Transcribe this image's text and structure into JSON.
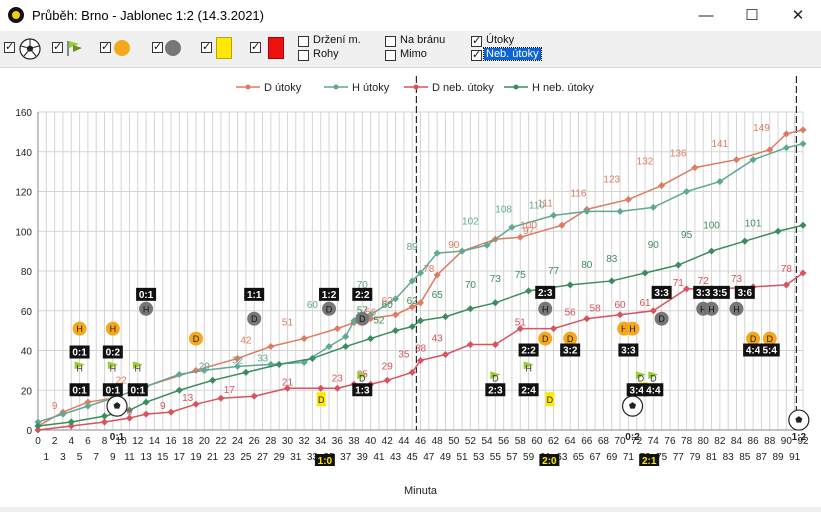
{
  "window": {
    "title": "Průběh: Brno - Jablonec 1:2 (14.3.2021)",
    "minimize": "—",
    "maximize": "☐",
    "close": "✕"
  },
  "toolbar": {
    "options": [
      {
        "label": "Držení m.",
        "checked": false
      },
      {
        "label": "Rohy",
        "checked": false
      },
      {
        "label": "Na bránu",
        "checked": false
      },
      {
        "label": "Mimo",
        "checked": false
      },
      {
        "label": "Útoky",
        "checked": true
      },
      {
        "label": "Neb. útoky",
        "checked": true,
        "selected": true
      }
    ],
    "event_toggles": [
      {
        "icon": "ball-icon",
        "checked": true
      },
      {
        "icon": "flag-icon",
        "checked": true
      },
      {
        "icon": "orange-dot-icon",
        "checked": true
      },
      {
        "icon": "gray-dot-icon",
        "checked": true
      },
      {
        "icon": "yellow-card-icon",
        "checked": true
      },
      {
        "icon": "red-card-icon",
        "checked": true
      }
    ]
  },
  "legend": [
    "D útoky",
    "H útoky",
    "D neb. útoky",
    "H neb. útoky"
  ],
  "colors": {
    "d_utoky": "#e07a62",
    "h_utoky": "#5fa893",
    "d_neb": "#d9535c",
    "h_neb": "#3d8c60",
    "yellow_card": "#ffe800",
    "orange_event": "#f5a81c",
    "gray_event": "#777777"
  },
  "chart_data": {
    "type": "line",
    "xlabel": "Minuta",
    "ylabel": "",
    "xlim": [
      0,
      92
    ],
    "ylim": [
      0,
      160
    ],
    "yticks": [
      0,
      20,
      40,
      60,
      80,
      100,
      120,
      140,
      160
    ],
    "series": [
      {
        "name": "D útoky",
        "x": [
          0,
          3,
          6,
          9,
          13,
          19,
          24,
          28,
          32,
          36,
          38,
          40,
          43,
          45,
          46,
          48,
          51,
          55,
          58,
          63,
          66,
          71,
          75,
          79,
          84,
          88,
          90,
          92
        ],
        "values": [
          2,
          9,
          14,
          16,
          22,
          30,
          36,
          42,
          46,
          51,
          54,
          56,
          58,
          62,
          64,
          78,
          90,
          96,
          97,
          103,
          111,
          116,
          123,
          132,
          136,
          141,
          149,
          151
        ]
      },
      {
        "name": "H útoky",
        "x": [
          0,
          3,
          6,
          9,
          13,
          17,
          20,
          24,
          28,
          32,
          35,
          37,
          38,
          40,
          43,
          45,
          46,
          48,
          51,
          54,
          57,
          62,
          66,
          70,
          74,
          78,
          82,
          86,
          90,
          92
        ],
        "values": [
          4,
          8,
          12,
          16,
          22,
          28,
          30,
          32,
          33,
          34,
          42,
          47,
          55,
          58,
          66,
          75,
          79,
          89,
          90,
          93,
          102,
          108,
          110,
          110,
          112,
          120,
          125,
          136,
          142,
          144
        ]
      },
      {
        "name": "D neb. útoky",
        "x": [
          0,
          4,
          8,
          11,
          13,
          16,
          19,
          22,
          26,
          30,
          34,
          36,
          38,
          40,
          42,
          45,
          46,
          49,
          52,
          55,
          58,
          62,
          66,
          70,
          74,
          78,
          82,
          86,
          90,
          92
        ],
        "values": [
          0,
          2,
          4,
          6,
          8,
          9,
          13,
          16,
          17,
          21,
          21,
          21,
          23,
          23,
          25,
          29,
          35,
          38,
          43,
          43,
          51,
          51,
          56,
          58,
          60,
          71,
          71,
          72,
          73,
          79
        ]
      },
      {
        "name": "H neb. útoky",
        "x": [
          0,
          4,
          8,
          11,
          13,
          17,
          21,
          25,
          29,
          33,
          37,
          40,
          43,
          45,
          46,
          49,
          52,
          55,
          59,
          64,
          69,
          73,
          77,
          81,
          85,
          89,
          92
        ],
        "values": [
          2,
          4,
          7,
          10,
          14,
          20,
          25,
          29,
          33,
          36,
          42,
          46,
          50,
          52,
          55,
          57,
          61,
          64,
          70,
          73,
          75,
          79,
          83,
          90,
          95,
          100,
          103
        ]
      }
    ],
    "data_labels": [
      {
        "text": "149",
        "x": 87,
        "y": 149,
        "series": 0
      },
      {
        "text": "141",
        "x": 82,
        "y": 141,
        "series": 0
      },
      {
        "text": "136",
        "x": 77,
        "y": 136,
        "series": 0
      },
      {
        "text": "132",
        "x": 73,
        "y": 132,
        "series": 0
      },
      {
        "text": "123",
        "x": 69,
        "y": 123,
        "series": 0
      },
      {
        "text": "116",
        "x": 65,
        "y": 116,
        "series": 0
      },
      {
        "text": "111",
        "x": 61,
        "y": 111,
        "series": 0
      },
      {
        "text": "108",
        "x": 56,
        "y": 108,
        "series": 1
      },
      {
        "text": "110",
        "x": 60,
        "y": 110,
        "series": 1
      },
      {
        "text": "102",
        "x": 52,
        "y": 102,
        "series": 1
      },
      {
        "text": "100",
        "x": 59,
        "y": 100,
        "series": 0
      },
      {
        "text": "97",
        "x": 59,
        "y": 97,
        "series": 0
      },
      {
        "text": "90",
        "x": 50,
        "y": 90,
        "series": 0
      },
      {
        "text": "89",
        "x": 45,
        "y": 89,
        "series": 1
      },
      {
        "text": "78",
        "x": 47,
        "y": 78,
        "series": 0
      },
      {
        "text": "70",
        "x": 39,
        "y": 70,
        "series": 1
      },
      {
        "text": "62",
        "x": 42,
        "y": 62,
        "series": 0
      },
      {
        "text": "60",
        "x": 33,
        "y": 60,
        "series": 1
      },
      {
        "text": "56",
        "x": 40,
        "y": 56,
        "series": 0
      },
      {
        "text": "51",
        "x": 30,
        "y": 51,
        "series": 0
      },
      {
        "text": "42",
        "x": 25,
        "y": 42,
        "series": 0
      },
      {
        "text": "33",
        "x": 27,
        "y": 33,
        "series": 1
      },
      {
        "text": "32",
        "x": 24,
        "y": 32,
        "series": 1
      },
      {
        "text": "29",
        "x": 20,
        "y": 29,
        "series": 1
      },
      {
        "text": "22",
        "x": 10,
        "y": 22,
        "series": 0
      },
      {
        "text": "9",
        "x": 2,
        "y": 9,
        "series": 0
      },
      {
        "text": "101",
        "x": 86,
        "y": 101,
        "series": 3
      },
      {
        "text": "100",
        "x": 81,
        "y": 100,
        "series": 3
      },
      {
        "text": "95",
        "x": 78,
        "y": 95,
        "series": 3
      },
      {
        "text": "90",
        "x": 74,
        "y": 90,
        "series": 3
      },
      {
        "text": "83",
        "x": 69,
        "y": 83,
        "series": 3
      },
      {
        "text": "80",
        "x": 66,
        "y": 80,
        "series": 3
      },
      {
        "text": "77",
        "x": 62,
        "y": 77,
        "series": 3
      },
      {
        "text": "75",
        "x": 58,
        "y": 75,
        "series": 3
      },
      {
        "text": "73",
        "x": 55,
        "y": 73,
        "series": 3
      },
      {
        "text": "70",
        "x": 52,
        "y": 70,
        "series": 3
      },
      {
        "text": "65",
        "x": 48,
        "y": 65,
        "series": 3
      },
      {
        "text": "62",
        "x": 45,
        "y": 62,
        "series": 3
      },
      {
        "text": "60",
        "x": 42,
        "y": 60,
        "series": 3
      },
      {
        "text": "57",
        "x": 39,
        "y": 57,
        "series": 3
      },
      {
        "text": "52",
        "x": 41,
        "y": 52,
        "series": 3
      },
      {
        "text": "43",
        "x": 48,
        "y": 43,
        "series": 2
      },
      {
        "text": "78",
        "x": 90,
        "y": 78,
        "series": 2
      },
      {
        "text": "73",
        "x": 84,
        "y": 73,
        "series": 2
      },
      {
        "text": "72",
        "x": 80,
        "y": 72,
        "series": 2
      },
      {
        "text": "71",
        "x": 77,
        "y": 71,
        "series": 2
      },
      {
        "text": "61",
        "x": 73,
        "y": 61,
        "series": 2
      },
      {
        "text": "60",
        "x": 70,
        "y": 60,
        "series": 2
      },
      {
        "text": "58",
        "x": 67,
        "y": 58,
        "series": 2
      },
      {
        "text": "56",
        "x": 64,
        "y": 56,
        "series": 2
      },
      {
        "text": "51",
        "x": 58,
        "y": 51,
        "series": 2
      },
      {
        "text": "38",
        "x": 46,
        "y": 38,
        "series": 2
      },
      {
        "text": "35",
        "x": 44,
        "y": 35,
        "series": 2
      },
      {
        "text": "29",
        "x": 42,
        "y": 29,
        "series": 2
      },
      {
        "text": "25",
        "x": 39,
        "y": 25,
        "series": 2
      },
      {
        "text": "23",
        "x": 36,
        "y": 23,
        "series": 2
      },
      {
        "text": "21",
        "x": 30,
        "y": 21,
        "series": 2
      },
      {
        "text": "17",
        "x": 23,
        "y": 17,
        "series": 2
      },
      {
        "text": "13",
        "x": 18,
        "y": 13,
        "series": 2
      },
      {
        "text": "9",
        "x": 15,
        "y": 9,
        "series": 2
      },
      {
        "text": "6",
        "x": 11,
        "y": 6,
        "series": 2
      }
    ],
    "score_markers": [
      {
        "text": "0:1",
        "x": 13,
        "y": 68
      },
      {
        "text": "1:1",
        "x": 26,
        "y": 68
      },
      {
        "text": "1:2",
        "x": 35,
        "y": 68
      },
      {
        "text": "2:2",
        "x": 39,
        "y": 68
      },
      {
        "text": "0:1",
        "x": 5,
        "y": 39
      },
      {
        "text": "0:2",
        "x": 9,
        "y": 39
      },
      {
        "text": "0:1",
        "x": 5,
        "y": 20
      },
      {
        "text": "0:1",
        "x": 9,
        "y": 20
      },
      {
        "text": "0:1",
        "x": 12,
        "y": 20
      },
      {
        "text": "1:3",
        "x": 39,
        "y": 20
      },
      {
        "text": "2:3",
        "x": 55,
        "y": 20
      },
      {
        "text": "2:4",
        "x": 59,
        "y": 20
      },
      {
        "text": "3:4",
        "x": 72,
        "y": 20
      },
      {
        "text": "4:4",
        "x": 74,
        "y": 20
      },
      {
        "text": "2:2",
        "x": 59,
        "y": 40
      },
      {
        "text": "3:2",
        "x": 64,
        "y": 40
      },
      {
        "text": "3:3",
        "x": 71,
        "y": 40
      },
      {
        "text": "4:4",
        "x": 86,
        "y": 40
      },
      {
        "text": "5:4",
        "x": 88,
        "y": 40
      },
      {
        "text": "2:3",
        "x": 61,
        "y": 69
      },
      {
        "text": "3:3",
        "x": 75,
        "y": 69
      },
      {
        "text": "3:3",
        "x": 80,
        "y": 69
      },
      {
        "text": "3:5",
        "x": 82,
        "y": 69
      },
      {
        "text": "3:6",
        "x": 85,
        "y": 69
      }
    ],
    "bottom_scores": [
      {
        "text": "0:1",
        "x": 9.5
      },
      {
        "text": "1:0",
        "x": 34.5
      },
      {
        "text": "2:0",
        "x": 61.5
      },
      {
        "text": "0:2",
        "x": 71.5
      },
      {
        "text": "2:1",
        "x": 73.5
      },
      {
        "text": "1:2",
        "x": 91.5
      }
    ],
    "orange_events": [
      {
        "text": "H",
        "x": 5,
        "y": 51
      },
      {
        "text": "H",
        "x": 9,
        "y": 51
      },
      {
        "text": "D",
        "x": 19,
        "y": 46
      },
      {
        "text": "D",
        "x": 61,
        "y": 46
      },
      {
        "text": "D",
        "x": 64,
        "y": 46
      },
      {
        "text": "H",
        "x": 70.5,
        "y": 51
      },
      {
        "text": "H",
        "x": 71.5,
        "y": 51
      },
      {
        "text": "D",
        "x": 86,
        "y": 46
      },
      {
        "text": "D",
        "x": 88,
        "y": 46
      }
    ],
    "gray_events": [
      {
        "text": "H",
        "x": 13,
        "y": 61
      },
      {
        "text": "D",
        "x": 26,
        "y": 56
      },
      {
        "text": "D",
        "x": 35,
        "y": 61
      },
      {
        "text": "D",
        "x": 39,
        "y": 56
      },
      {
        "text": "H",
        "x": 61,
        "y": 61
      },
      {
        "text": "D",
        "x": 75,
        "y": 56
      },
      {
        "text": "H",
        "x": 80,
        "y": 61
      },
      {
        "text": "H",
        "x": 81,
        "y": 61
      },
      {
        "text": "H",
        "x": 84,
        "y": 61
      }
    ],
    "yellow_cards": [
      {
        "text": "D",
        "x": 34,
        "y": 15
      },
      {
        "text": "D",
        "x": 61.5,
        "y": 15
      },
      {
        "text": "D",
        "x": 72.8,
        "y": 20
      }
    ],
    "flags": [
      {
        "text": "H",
        "x": 5,
        "y": 31
      },
      {
        "text": "H",
        "x": 9,
        "y": 31
      },
      {
        "text": "H",
        "x": 12,
        "y": 31
      },
      {
        "text": "D",
        "x": 55,
        "y": 26
      },
      {
        "text": "H",
        "x": 59,
        "y": 31
      },
      {
        "text": "D",
        "x": 72.5,
        "y": 26
      },
      {
        "text": "D",
        "x": 74,
        "y": 26
      },
      {
        "text": "D",
        "x": 39,
        "y": 26
      }
    ],
    "balls": [
      {
        "x": 9.5,
        "y": 12
      },
      {
        "x": 71.5,
        "y": 12
      },
      {
        "x": 91.5,
        "y": 5
      }
    ],
    "vlines": [
      45.5,
      91.2
    ]
  }
}
